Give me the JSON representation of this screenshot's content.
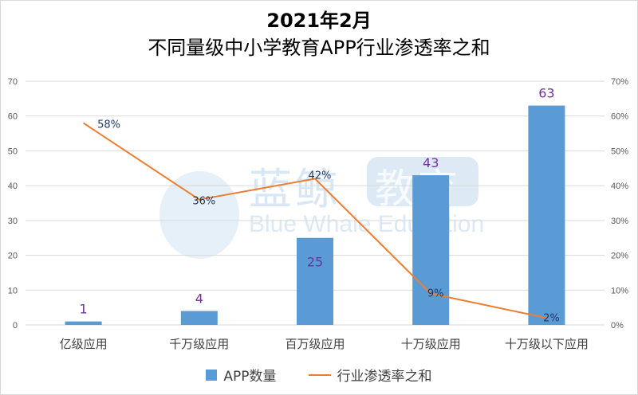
{
  "title_line1": "2021年2月",
  "title_line2": "不同量级中小学教育APP行业渗透率之和",
  "watermark": {
    "cn": "蓝鲸",
    "cn_box": "教育",
    "en": "Blue Whale Education"
  },
  "colors": {
    "bar": "#5b9bd5",
    "line": "#ed7d31",
    "bar_label": "#7030a0",
    "line_label": "#1f3864",
    "grid": "#d9d9d9"
  },
  "legend": {
    "bar_label": "APP数量",
    "line_label": "行业渗透率之和"
  },
  "chart_data": {
    "type": "bar",
    "categories": [
      "亿级应用",
      "千万级应用",
      "百万级应用",
      "十万级应用",
      "十万级以下应用"
    ],
    "series": [
      {
        "name": "APP数量",
        "type": "bar",
        "axis": "left",
        "values": [
          1,
          4,
          25,
          43,
          63
        ],
        "labels": [
          "1",
          "4",
          "25",
          "43",
          "63"
        ]
      },
      {
        "name": "行业渗透率之和",
        "type": "line",
        "axis": "right",
        "values": [
          0.58,
          0.36,
          0.42,
          0.09,
          0.02
        ],
        "labels": [
          "58%",
          "36%",
          "42%",
          "9%",
          "2%"
        ]
      }
    ],
    "y_left": {
      "min": 0,
      "max": 70,
      "ticks": [
        "0",
        "10",
        "20",
        "30",
        "40",
        "50",
        "60",
        "70"
      ]
    },
    "y_right": {
      "min": 0,
      "max": 0.7,
      "ticks": [
        "0%",
        "10%",
        "20%",
        "30%",
        "40%",
        "50%",
        "60%",
        "70%"
      ]
    },
    "grid": true,
    "legend_position": "bottom"
  }
}
